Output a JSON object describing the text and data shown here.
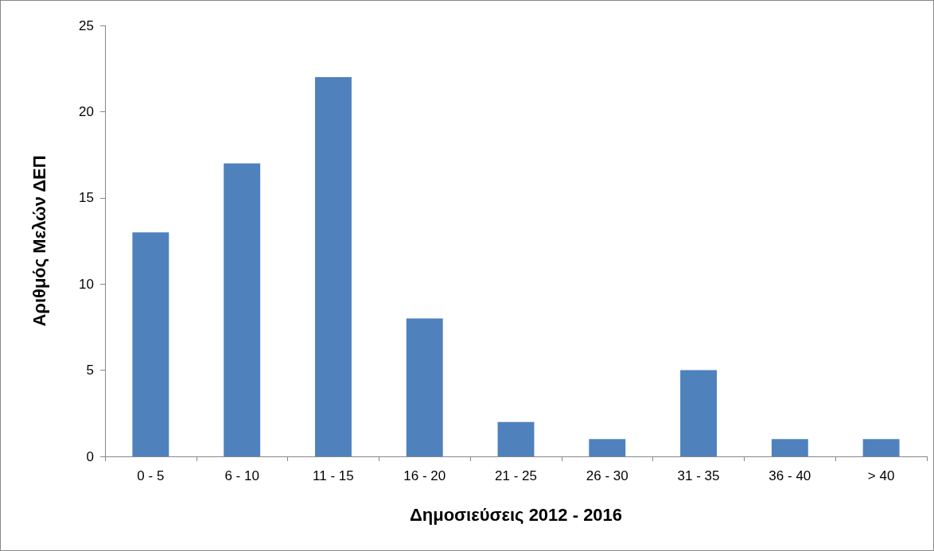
{
  "chart_data": {
    "type": "bar",
    "xlabel": "Δημοσιεύσεις 2012 - 2016",
    "ylabel": "Αριθμός Μελών ΔΕΠ",
    "categories": [
      "0 - 5",
      "6 - 10",
      "11 - 15",
      "16 - 20",
      "21 - 25",
      "26 - 30",
      "31 - 35",
      "36 - 40",
      "> 40"
    ],
    "values": [
      13,
      17,
      22,
      8,
      2,
      1,
      5,
      1,
      1
    ],
    "color": "#4f81bd",
    "ylim": [
      0,
      25
    ],
    "yticks": [
      0,
      5,
      10,
      15,
      20,
      25
    ],
    "grid": false
  }
}
